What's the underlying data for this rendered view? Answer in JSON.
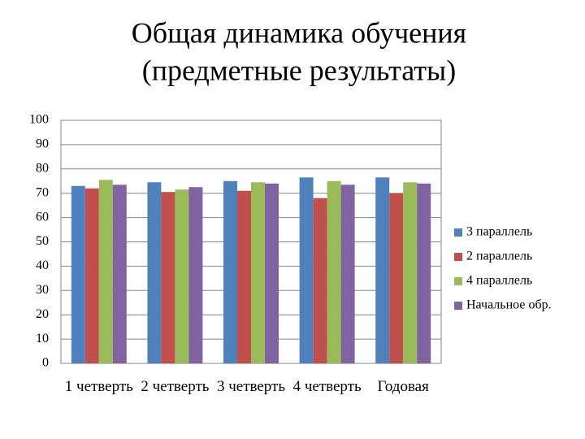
{
  "chart_data": {
    "type": "bar",
    "title": "Общая динамика обучения",
    "subtitle": "(предметные результаты)",
    "categories": [
      "1 четверть",
      "2 четверть",
      "3 четверть",
      "4 четверть",
      "Годовая"
    ],
    "series": [
      {
        "name": "3 параллель",
        "color": "#4f81bd",
        "values": [
          73,
          74.5,
          75,
          76.5,
          76.5
        ]
      },
      {
        "name": "2 параллель",
        "color": "#c0504d",
        "values": [
          72,
          70.5,
          71,
          68,
          70
        ]
      },
      {
        "name": "4 параллель",
        "color": "#9bbb59",
        "values": [
          75.5,
          71.5,
          74.5,
          75,
          74.5
        ]
      },
      {
        "name": "Начальное обр.",
        "color": "#8064a2",
        "values": [
          73.5,
          72.5,
          74,
          73.5,
          74
        ]
      }
    ],
    "ylim": [
      0,
      100
    ],
    "yticks": [
      0,
      10,
      20,
      30,
      40,
      50,
      60,
      70,
      80,
      90,
      100
    ],
    "grid": true,
    "legend": "right"
  }
}
